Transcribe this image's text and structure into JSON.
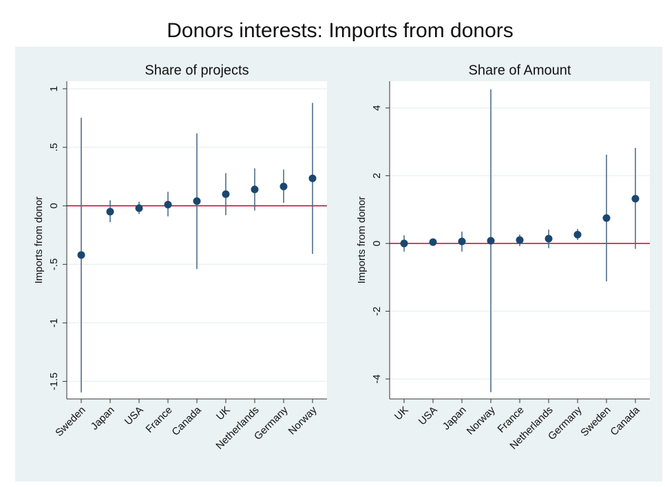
{
  "title": "Donors interests: Imports from donors",
  "chart_data": [
    {
      "type": "errorbar",
      "title": "Share of projects",
      "y_label": "Imports from donor",
      "categories": [
        "Sweden",
        "Japan",
        "USA",
        "France",
        "Canada",
        "UK",
        "Netherlands",
        "Germany",
        "Norway"
      ],
      "values": [
        -0.42,
        -0.05,
        -0.02,
        0.01,
        0.04,
        0.1,
        0.14,
        0.165,
        0.235
      ],
      "lower": [
        -1.594,
        -0.14,
        -0.07,
        -0.09,
        -0.54,
        -0.08,
        -0.04,
        0.025,
        -0.41
      ],
      "upper": [
        0.753,
        0.047,
        0.035,
        0.12,
        0.62,
        0.28,
        0.32,
        0.31,
        0.88
      ],
      "ylim": [
        -1.65,
        1.065
      ],
      "yticks": [
        {
          "value": -1.5,
          "label": "-1.5"
        },
        -1,
        {
          "value": -0.5,
          "label": "-.5"
        },
        0,
        {
          "value": 0.5,
          "label": ".5"
        },
        1
      ],
      "reference_line": 0,
      "grid": true,
      "color": "#1a476f",
      "bar_color": "#4f6d88",
      "reference_color": "#c10534"
    },
    {
      "type": "errorbar",
      "title": "Share of Amount",
      "y_label": "Imports from donor",
      "categories": [
        "UK",
        "USA",
        "Japan",
        "Norway",
        "France",
        "Netherlands",
        "Germany",
        "Sweden",
        "Canada"
      ],
      "values": [
        0,
        0.04,
        0.06,
        0.08,
        0.1,
        0.14,
        0.26,
        0.75,
        1.32
      ],
      "lower": [
        -0.24,
        -0.02,
        -0.24,
        -4.39,
        -0.08,
        -0.14,
        0.1,
        -1.12,
        -0.16
      ],
      "upper": [
        0.24,
        0.1,
        0.35,
        4.55,
        0.26,
        0.41,
        0.43,
        2.62,
        2.82
      ],
      "ylim": [
        -4.59,
        4.79
      ],
      "yticks": [
        -4,
        -2,
        0,
        2,
        4
      ],
      "reference_line": 0,
      "grid": true,
      "color": "#1a476f",
      "bar_color": "#4f6d88",
      "reference_color": "#c10534"
    }
  ]
}
